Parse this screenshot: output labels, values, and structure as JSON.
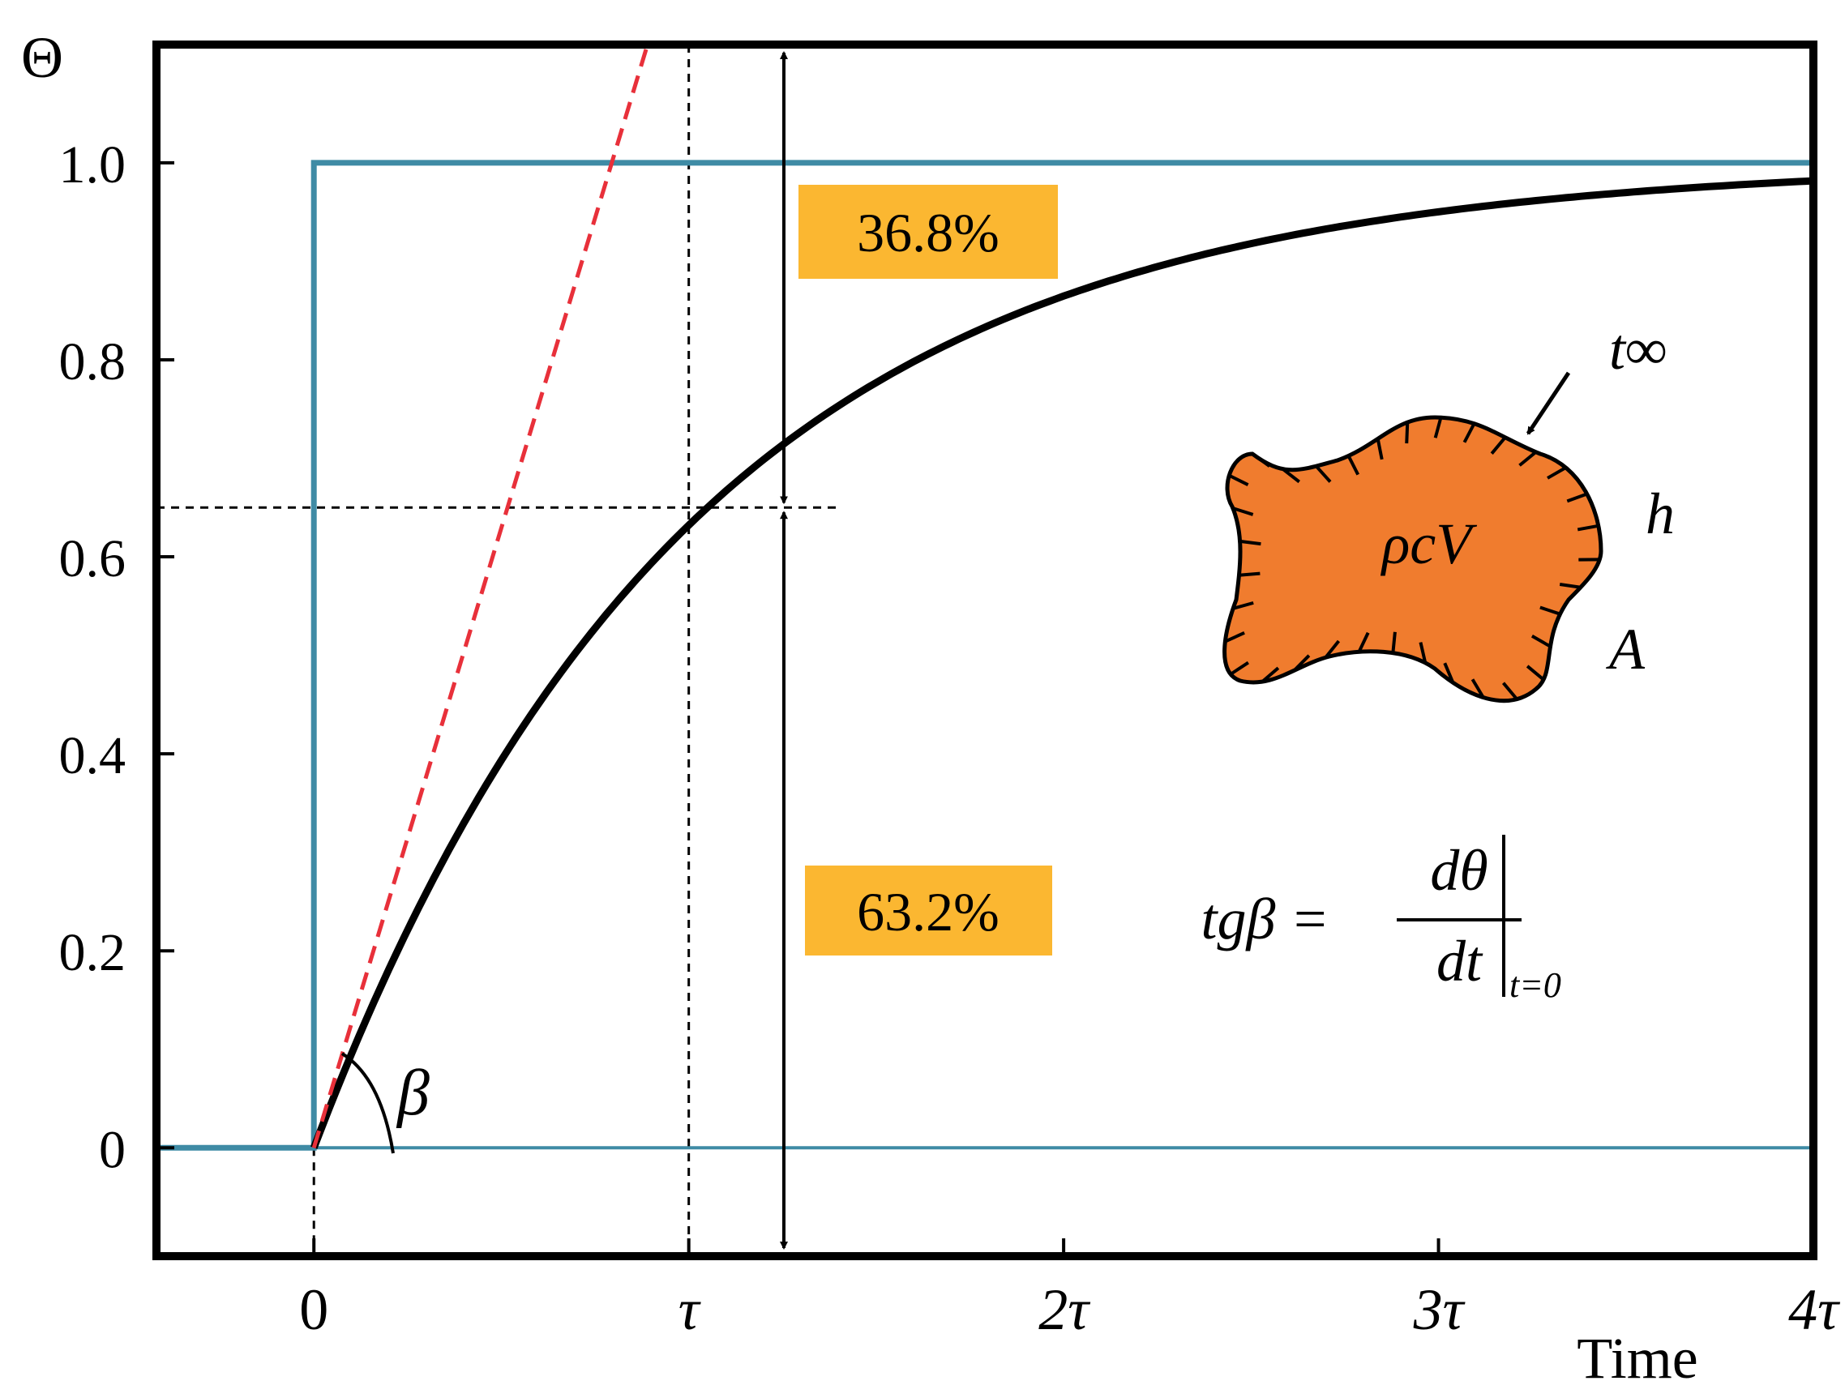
{
  "chart_data": {
    "type": "line",
    "title": "",
    "ylabel": "Θ",
    "xlabel": "Time",
    "xlim": [
      -0.42,
      4
    ],
    "ylim": [
      -0.11,
      1.12
    ],
    "x_ticks": [
      {
        "value": 0,
        "label": "0"
      },
      {
        "value": 1,
        "label": "τ"
      },
      {
        "value": 2,
        "label": "2τ"
      },
      {
        "value": 3,
        "label": "3τ"
      },
      {
        "value": 4,
        "label": "4τ"
      }
    ],
    "y_ticks": [
      {
        "value": 0,
        "label": "0"
      },
      {
        "value": 0.2,
        "label": "0.2"
      },
      {
        "value": 0.4,
        "label": "0.4"
      },
      {
        "value": 0.6,
        "label": "0.6"
      },
      {
        "value": 0.8,
        "label": "0.8"
      },
      {
        "value": 1.0,
        "label": "1.0"
      }
    ],
    "series": [
      {
        "role": "step_input",
        "color": "#3f8ba5",
        "x": [
          -0.42,
          0,
          0,
          4
        ],
        "y": [
          0,
          0,
          1,
          1
        ]
      },
      {
        "role": "response",
        "color": "#000000",
        "x": [
          0,
          0.25,
          0.5,
          0.75,
          1,
          1.25,
          1.5,
          1.75,
          2,
          2.5,
          3,
          3.5,
          4
        ],
        "y": [
          0,
          0.221,
          0.393,
          0.528,
          0.632,
          0.713,
          0.777,
          0.826,
          0.865,
          0.918,
          0.95,
          0.97,
          0.982
        ]
      },
      {
        "role": "initial_tangent",
        "color": "#e8303a",
        "style": "dashed",
        "x": [
          0,
          0.89
        ],
        "y": [
          0,
          1.12
        ]
      }
    ],
    "guides": {
      "tau_x": 1,
      "level_y": 0.65
    },
    "annotations": {
      "upper_percent": "36.8%",
      "lower_percent": "63.2%",
      "box_color": "#fbb731",
      "angle_label": "β",
      "body_label": "ρcV",
      "body_color": "#f07c2e",
      "ambient_label": "t∞",
      "h_label": "h",
      "area_label": "A",
      "formula_lhs": "tgβ =",
      "formula_num": "dθ",
      "formula_den": "dt",
      "formula_sub": "t=0"
    }
  }
}
